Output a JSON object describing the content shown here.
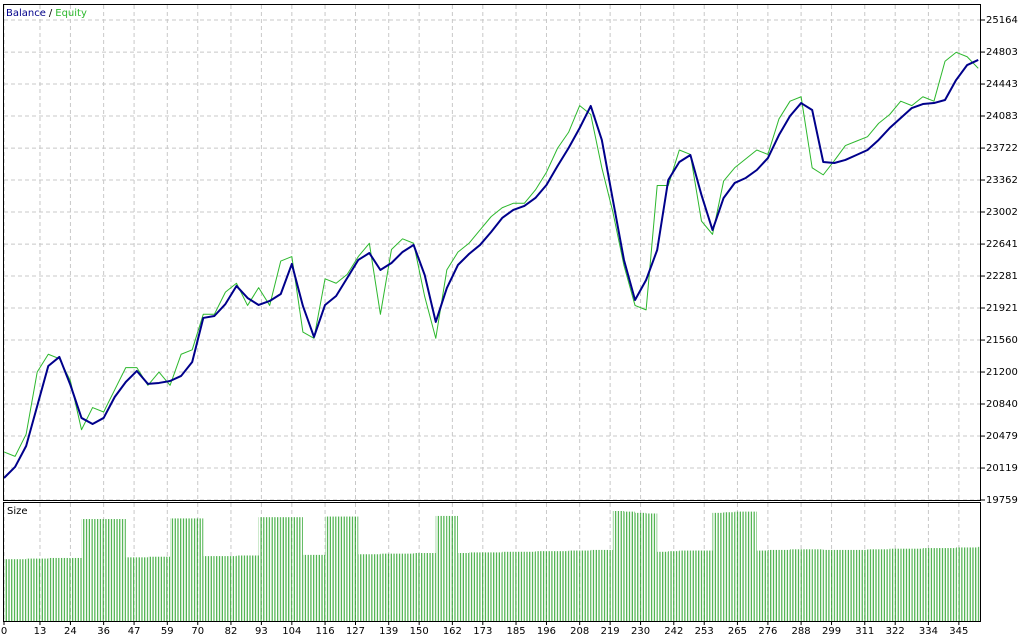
{
  "chart_data": [
    {
      "type": "line",
      "legend_separator": "/",
      "x": [
        0,
        4,
        8,
        12,
        16,
        20,
        24,
        28,
        32,
        36,
        40,
        44,
        48,
        52,
        56,
        60,
        64,
        68,
        72,
        76,
        80,
        84,
        88,
        92,
        96,
        100,
        104,
        108,
        112,
        116,
        120,
        124,
        128,
        132,
        136,
        140,
        144,
        148,
        152,
        156,
        160,
        164,
        168,
        172,
        176,
        180,
        184,
        188,
        192,
        196,
        200,
        204,
        208,
        212,
        216,
        220,
        224,
        228,
        232,
        236,
        240,
        244,
        248,
        252,
        256,
        260,
        264,
        268,
        272,
        276,
        280,
        284,
        288,
        292,
        296,
        300,
        304,
        308,
        312,
        316,
        320,
        324,
        328,
        332,
        336,
        340,
        344,
        348,
        352
      ],
      "series": [
        {
          "name": "Balance",
          "color": "#00008b",
          "values": [
            20007,
            20131,
            20367,
            20818,
            21268,
            21370,
            21054,
            20683,
            20615,
            20683,
            20919,
            21088,
            21212,
            21066,
            21077,
            21099,
            21156,
            21313,
            21809,
            21831,
            21966,
            22169,
            22034,
            21955,
            22000,
            22079,
            22417,
            21944,
            21595,
            21955,
            22056,
            22259,
            22462,
            22540,
            22349,
            22428,
            22552,
            22631,
            22293,
            21764,
            22146,
            22405,
            22529,
            22631,
            22777,
            22935,
            23025,
            23070,
            23160,
            23306,
            23520,
            23723,
            23948,
            24196,
            23813,
            23137,
            22462,
            22011,
            22236,
            22574,
            23362,
            23565,
            23644,
            23194,
            22799,
            23160,
            23329,
            23385,
            23475,
            23610,
            23869,
            24083,
            24229,
            24151,
            23565,
            23554,
            23588,
            23644,
            23700,
            23813,
            23948,
            24060,
            24173,
            24218,
            24229,
            24263,
            24488,
            24657,
            24714
          ]
        },
        {
          "name": "Equity",
          "color": "#2db82d",
          "values": [
            20300,
            20250,
            20500,
            21200,
            21400,
            21350,
            21100,
            20550,
            20800,
            20750,
            21000,
            21250,
            21250,
            21050,
            21200,
            21050,
            21400,
            21450,
            21850,
            21850,
            22100,
            22200,
            21950,
            22150,
            21950,
            22450,
            22500,
            21650,
            21580,
            22250,
            22200,
            22300,
            22500,
            22650,
            21850,
            22580,
            22700,
            22650,
            22050,
            21580,
            22350,
            22550,
            22650,
            22800,
            22950,
            23050,
            23100,
            23100,
            23250,
            23450,
            23720,
            23900,
            24200,
            24100,
            23500,
            23000,
            22400,
            21950,
            21900,
            23300,
            23300,
            23700,
            23650,
            22900,
            22750,
            23350,
            23500,
            23600,
            23700,
            23650,
            24050,
            24250,
            24300,
            23500,
            23420,
            23580,
            23750,
            23800,
            23850,
            24000,
            24100,
            24250,
            24200,
            24300,
            24250,
            24700,
            24800,
            24750,
            24620
          ]
        }
      ],
      "xlim": [
        0,
        353
      ],
      "ylim": [
        19759,
        25333
      ],
      "yticks": [
        19759,
        20119,
        20479,
        20840,
        21200,
        21560,
        21921,
        22281,
        22641,
        23002,
        23362,
        23722,
        24083,
        24443,
        24803,
        25164
      ],
      "grid": true
    },
    {
      "type": "bar",
      "title": "Size",
      "color": "#22a022",
      "x": [
        0,
        4,
        8,
        12,
        16,
        20,
        24,
        28,
        32,
        36,
        40,
        44,
        48,
        52,
        56,
        60,
        64,
        68,
        72,
        76,
        80,
        84,
        88,
        92,
        96,
        100,
        104,
        108,
        112,
        116,
        120,
        124,
        128,
        132,
        136,
        140,
        144,
        148,
        152,
        156,
        160,
        164,
        168,
        172,
        176,
        180,
        184,
        188,
        192,
        196,
        200,
        204,
        208,
        212,
        216,
        220,
        224,
        228,
        232,
        236,
        240,
        244,
        248,
        252,
        256,
        260,
        264,
        268,
        272,
        276,
        280,
        284,
        288,
        292,
        296,
        300,
        304,
        308,
        312,
        316,
        320,
        324,
        328,
        332,
        336,
        340,
        344,
        348,
        352
      ],
      "values": [
        1.0,
        1.0,
        1.01,
        1.01,
        1.02,
        1.02,
        1.02,
        1.65,
        1.65,
        1.65,
        1.65,
        1.03,
        1.03,
        1.04,
        1.04,
        1.66,
        1.66,
        1.66,
        1.05,
        1.05,
        1.05,
        1.06,
        1.06,
        1.68,
        1.68,
        1.68,
        1.68,
        1.07,
        1.07,
        1.69,
        1.69,
        1.69,
        1.08,
        1.08,
        1.09,
        1.09,
        1.09,
        1.1,
        1.1,
        1.7,
        1.7,
        1.1,
        1.11,
        1.11,
        1.11,
        1.12,
        1.12,
        1.12,
        1.13,
        1.13,
        1.13,
        1.14,
        1.14,
        1.15,
        1.15,
        1.78,
        1.77,
        1.75,
        1.74,
        1.12,
        1.13,
        1.14,
        1.14,
        1.14,
        1.75,
        1.76,
        1.77,
        1.77,
        1.14,
        1.15,
        1.15,
        1.16,
        1.16,
        1.16,
        1.15,
        1.15,
        1.15,
        1.15,
        1.16,
        1.16,
        1.17,
        1.17,
        1.17,
        1.18,
        1.18,
        1.18,
        1.19,
        1.19,
        1.2
      ],
      "xlim": [
        0,
        353
      ],
      "xticks": [
        0,
        13,
        24,
        36,
        47,
        59,
        70,
        82,
        93,
        104,
        116,
        127,
        139,
        150,
        162,
        173,
        185,
        196,
        208,
        219,
        230,
        242,
        253,
        265,
        276,
        288,
        299,
        311,
        322,
        334,
        345
      ],
      "grid": true
    }
  ]
}
